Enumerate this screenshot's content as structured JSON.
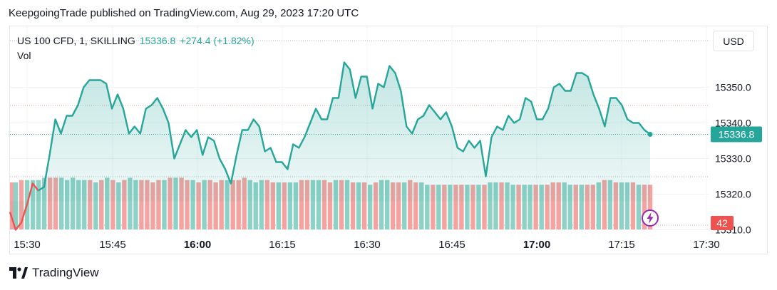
{
  "header": {
    "published_line": "KeepgoingTrade published on TradingView.com, Aug 29, 2023 17:20 UTC"
  },
  "legend": {
    "symbol": "US 100 CFD, 1, SKILLING",
    "last": "15336.8",
    "change": "+274.4 (+1.82%)",
    "volume_label": "Vol"
  },
  "currency_button": "USD",
  "price_label": "15336.8",
  "volume_label_value": "42",
  "logo_text": "TradingView",
  "colors": {
    "line": "#26a69a",
    "line_down": "#ef5350",
    "vol_up": "#8ed1c6",
    "vol_down": "#f4a3a0",
    "accent": "#26a69a",
    "down": "#ef5350"
  },
  "icons": {
    "logo": "tradingview-logo-icon",
    "bolt": "lightning-icon"
  },
  "chart_data": {
    "type": "area",
    "x_tick_labels": [
      "15:30",
      "15:45",
      "16:00",
      "16:15",
      "16:30",
      "16:45",
      "17:00",
      "17:15",
      "17:30"
    ],
    "bold_ticks": [
      "16:00",
      "17:00"
    ],
    "y_tick_labels": [
      "15310.0",
      "15320.0",
      "15330.0",
      "15340.0",
      "15350.0"
    ],
    "ylim": [
      15307,
      15357
    ],
    "price": [
      15315,
      15310,
      15312,
      15317,
      15323,
      15321,
      15322,
      15331,
      15341,
      15337,
      15342,
      15342,
      15345,
      15350,
      15352,
      15352,
      15352,
      15351,
      15344,
      15348,
      15344,
      15337,
      15339,
      15337,
      15344,
      15345,
      15347,
      15344,
      15340,
      15330,
      15334,
      15338,
      15336,
      15338,
      15331,
      15336,
      15335,
      15330,
      15327,
      15323,
      15331,
      15338,
      15338,
      15341,
      15339,
      15332,
      15333,
      15329,
      15329,
      15327,
      15334,
      15333,
      15336,
      15340,
      15344,
      15341,
      15341,
      15347,
      15347,
      15357,
      15355,
      15347,
      15353,
      15353,
      15344,
      15351,
      15350,
      15356,
      15354,
      15349,
      15339,
      15337,
      15341,
      15342,
      15345,
      15343,
      15341,
      15343,
      15339,
      15333,
      15332,
      15335,
      15333,
      15335,
      15325,
      15336,
      15339,
      15338,
      15342,
      15340,
      15341,
      15347,
      15346,
      15341,
      15341,
      15344,
      15350,
      15351,
      15349,
      15349,
      15354,
      15354,
      15353,
      15348,
      15344,
      15339,
      15347,
      15347,
      15345,
      15341,
      15340,
      15340,
      15338,
      15336.8
    ],
    "price_first_down_points": 6,
    "volume": [
      20,
      20,
      21,
      21,
      21,
      21,
      22,
      22,
      22,
      22,
      21,
      22,
      21,
      21,
      21,
      20,
      21,
      22,
      21,
      20,
      21,
      22,
      21,
      21,
      21,
      20,
      21,
      21,
      22,
      22,
      22,
      21,
      21,
      20,
      21,
      21,
      20,
      21,
      21,
      21,
      21,
      22,
      21,
      20,
      21,
      21,
      20,
      20,
      20,
      20,
      20,
      21,
      21,
      21,
      21,
      21,
      20,
      21,
      21,
      21,
      20,
      20,
      20,
      19,
      20,
      21,
      21,
      20,
      20,
      20,
      21,
      20,
      20,
      19,
      19,
      19,
      19,
      19,
      19,
      19,
      19,
      19,
      19,
      19,
      20,
      20,
      20,
      20,
      19,
      19,
      19,
      19,
      19,
      19,
      19,
      20,
      20,
      20,
      19,
      19,
      19,
      19,
      19,
      20,
      21,
      21,
      20,
      20,
      20,
      20,
      19,
      19,
      19
    ],
    "volume_up": [
      0,
      1,
      0,
      1,
      1,
      1,
      1,
      0,
      0,
      1,
      1,
      1,
      1,
      1,
      0,
      1,
      0,
      1,
      0,
      1,
      0,
      1,
      1,
      0,
      0,
      0,
      0,
      1,
      0,
      1,
      0,
      0,
      1,
      0,
      1,
      0,
      0,
      0,
      1,
      0,
      0,
      0,
      1,
      1,
      1,
      0,
      0,
      1,
      0,
      1,
      1,
      0,
      0,
      1,
      1,
      0,
      0,
      1,
      0,
      1,
      0,
      1,
      0,
      1,
      0,
      1,
      1,
      0,
      0,
      1,
      0,
      0,
      1,
      1,
      0,
      1,
      0,
      1,
      0,
      0,
      1,
      0,
      1,
      0,
      1,
      1,
      0,
      1,
      1,
      0,
      1,
      1,
      0,
      1,
      0,
      0,
      0,
      1,
      1,
      0,
      1,
      0,
      0,
      1,
      0,
      1,
      0,
      1,
      1,
      0,
      1,
      0,
      0
    ],
    "last_price": 15336.8,
    "last_volume": 42,
    "grid": true
  }
}
